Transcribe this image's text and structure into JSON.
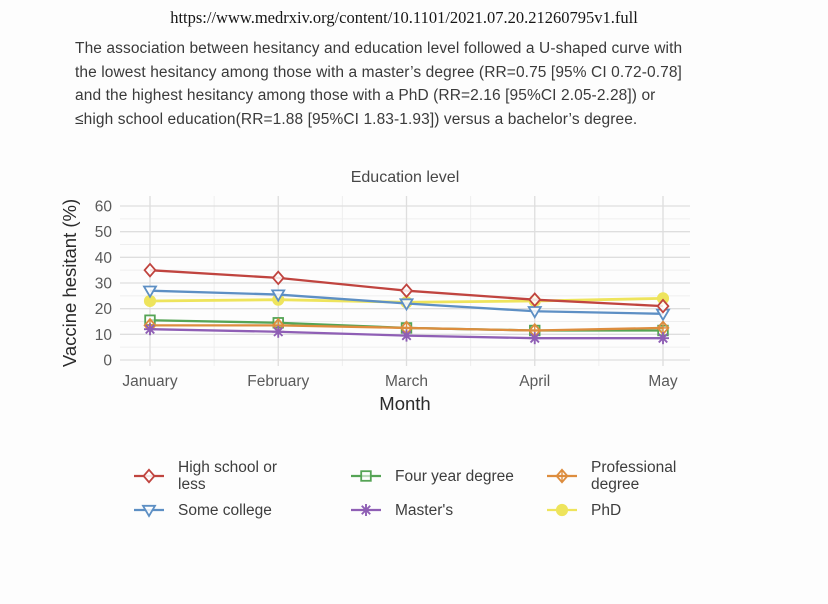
{
  "source_url": "https://www.medrxiv.org/content/10.1101/2021.07.20.21260795v1.full",
  "paragraph_lines": [
    "The association between hesitancy and education level followed a U-shaped curve with",
    "the lowest hesitancy among those with a master’s degree (RR=0.75 [95% CI 0.72-0.78]",
    "and the highest hesitancy among those with a PhD (RR=2.16 [95%CI 2.05-2.28]) or",
    "≤high school education(RR=1.88 [95%CI 1.83-1.93]) versus a bachelor’s degree."
  ],
  "chart_data": {
    "type": "line",
    "title": "Education level",
    "xlabel": "Month",
    "ylabel": "Vaccine hesitant (%)",
    "categories": [
      "January",
      "February",
      "March",
      "April",
      "May"
    ],
    "yticks": [
      0,
      10,
      20,
      30,
      40,
      50,
      60
    ],
    "ylim": [
      0,
      62
    ],
    "grid": "major and minor horizontal and vertical, light gray on white",
    "legend_position": "bottom, 2 rows x 3 columns",
    "series": [
      {
        "name": "High school or less",
        "color": "#c0443f",
        "marker": "open-diamond",
        "values": [
          35,
          32,
          27,
          23.5,
          21
        ]
      },
      {
        "name": "Four year degree",
        "color": "#55a455",
        "marker": "open-square",
        "values": [
          15.5,
          14.5,
          12.5,
          11.5,
          11.5
        ]
      },
      {
        "name": "Professional degree",
        "color": "#dd8d3e",
        "marker": "diamond-plus",
        "values": [
          13.5,
          13.5,
          12.5,
          11.5,
          12.5
        ]
      },
      {
        "name": "Some college",
        "color": "#5d8fc4",
        "marker": "open-triangle-down",
        "values": [
          27,
          25.5,
          22,
          19,
          18
        ]
      },
      {
        "name": "Master's",
        "color": "#8f5fb5",
        "marker": "asterisk",
        "values": [
          12,
          11,
          9.5,
          8.5,
          8.5
        ]
      },
      {
        "name": "PhD",
        "color": "#eee45c",
        "marker": "filled-circle",
        "values": [
          23,
          23.5,
          22.5,
          23,
          24
        ]
      }
    ]
  },
  "style_colors": {
    "grid_major": "#dedede",
    "grid_minor": "#eeeeee",
    "tick_text": "#5a5a5a",
    "axis_title_text": "#2b2b2b",
    "chart_title_text": "#474747"
  }
}
